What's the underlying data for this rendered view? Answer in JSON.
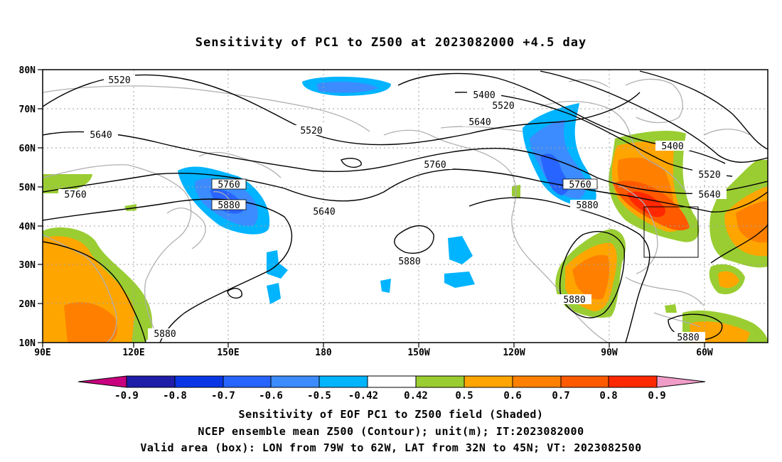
{
  "title": "Sensitivity of PC1 to Z500 at 2023082000 +4.5 day",
  "lat_labels": [
    "80N",
    "70N",
    "60N",
    "50N",
    "40N",
    "30N",
    "20N",
    "10N"
  ],
  "lon_labels": [
    "90E",
    "120E",
    "150E",
    "180",
    "150W",
    "120W",
    "90W",
    "60W"
  ],
  "contour_labels": [
    {
      "text": "5520"
    },
    {
      "text": "5400"
    },
    {
      "text": "5520"
    },
    {
      "text": "5640"
    },
    {
      "text": "5520"
    },
    {
      "text": "5640"
    },
    {
      "text": "5760"
    },
    {
      "text": "5400"
    },
    {
      "text": "5520"
    },
    {
      "text": "5640"
    },
    {
      "text": "5760"
    },
    {
      "text": "5760"
    },
    {
      "text": "5880"
    },
    {
      "text": "5640"
    },
    {
      "text": "5760"
    },
    {
      "text": "5880"
    },
    {
      "text": "5880"
    },
    {
      "text": "5880"
    },
    {
      "text": "5880"
    },
    {
      "text": "5880"
    }
  ],
  "colorbar": {
    "colors": [
      "#c8007f",
      "#1e1ea8",
      "#0a36e6",
      "#2864ff",
      "#3c8cff",
      "#00b4ff",
      "#ffffff",
      "#9acd32",
      "#ffa500",
      "#ff8000",
      "#ff5a00",
      "#ff2800",
      "#ff0000",
      "#f09cc8"
    ],
    "labels": [
      "-0.9",
      "-0.8",
      "-0.7",
      "-0.6",
      "-0.5",
      "-0.42",
      "0.42",
      "0.5",
      "0.6",
      "0.7",
      "0.8",
      "0.9"
    ]
  },
  "valid_box": {
    "lon_west": "79W",
    "lon_east": "62W",
    "lat_south": "32N",
    "lat_north": "45N"
  },
  "captions": [
    "Sensitivity of EOF PC1 to Z500 field (Shaded)",
    "NCEP ensemble mean Z500 (Contour); unit(m); IT:2023082000",
    "Valid area (box): LON from 79W to 62W, LAT from 32N to 45N; VT: 2023082500"
  ]
}
